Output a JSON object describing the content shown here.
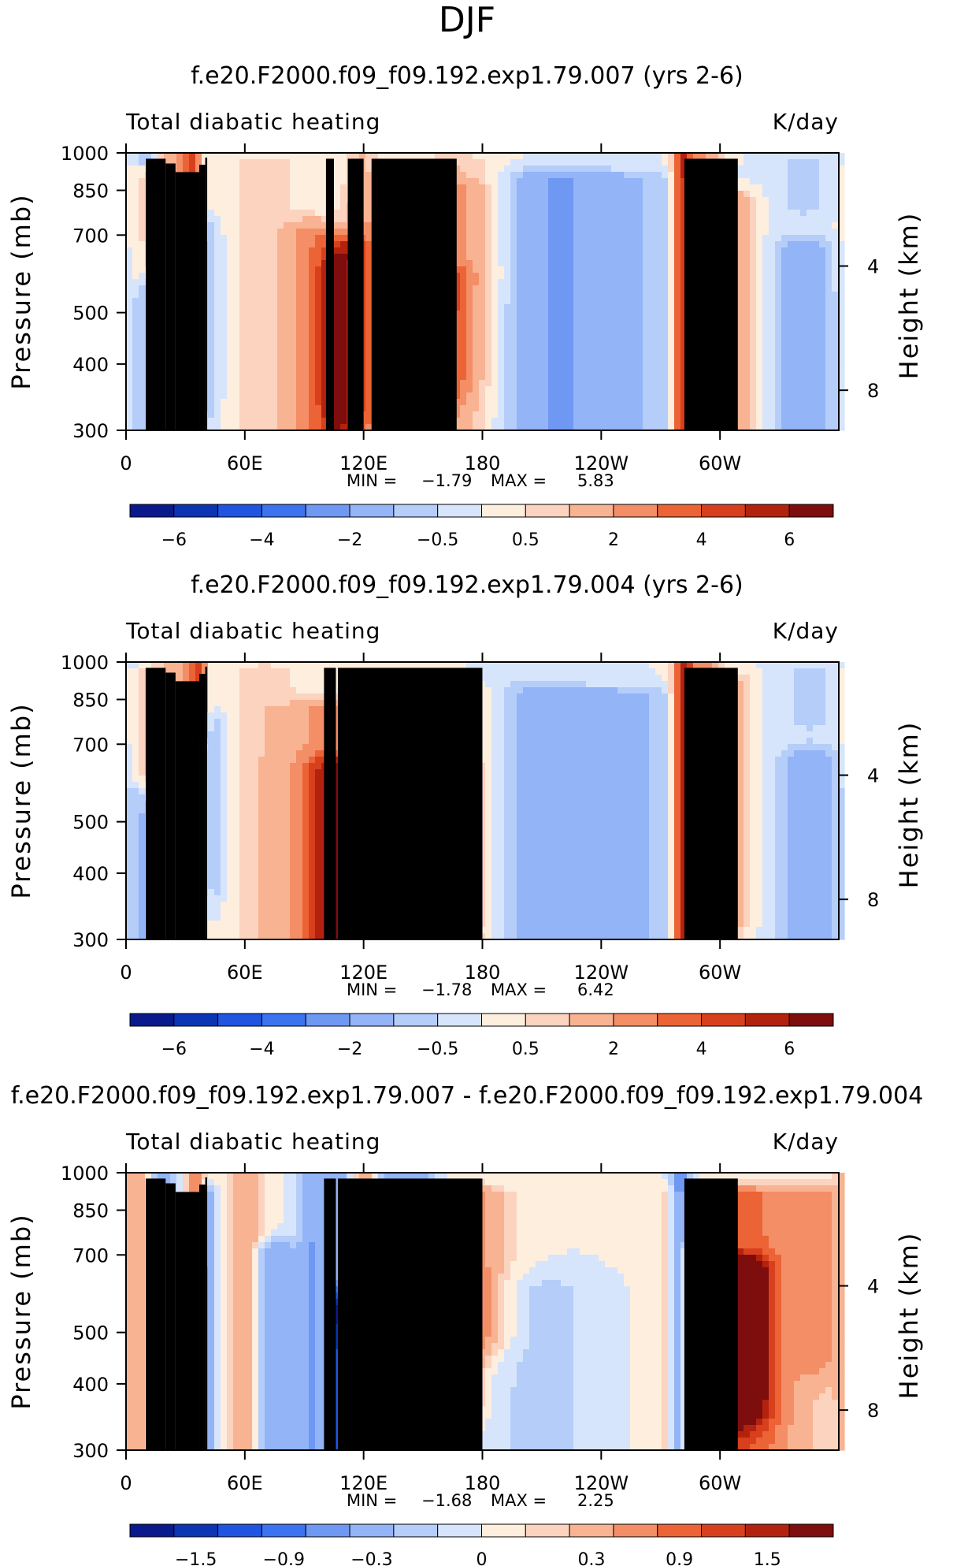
{
  "chart_data": {
    "type": "heatmap",
    "title": "DJF",
    "colorbar_colors": [
      "#0a1a8c",
      "#0b35b3",
      "#1f55e0",
      "#3b73f0",
      "#6f98f3",
      "#93b4f6",
      "#b5cdf9",
      "#d7e5fc",
      "#fdeede",
      "#fbd3bf",
      "#f8b393",
      "#f38e66",
      "#ec6336",
      "#d8401d",
      "#b3220f",
      "#7e0d0d"
    ],
    "panels": [
      {
        "title": "f.e20.F2000.f09_f09.192.exp1.79.007 (yrs 2-6)",
        "left_label": "Total diabatic heating",
        "right_label": "K/day",
        "ylabel": "Pressure (mb)",
        "y2label": "Height (km)",
        "x_ticks": [
          "0",
          "60E",
          "120E",
          "180",
          "120W",
          "60W"
        ],
        "y_ticks": [
          "300",
          "400",
          "500",
          "700",
          "850",
          "1000"
        ],
        "y2_ticks": [
          "8",
          "4"
        ],
        "ylim": [
          1000,
          300
        ],
        "min_label": "MIN =",
        "min_value": "−1.79",
        "max_label": "MAX =",
        "max_value": "5.83",
        "colorbar_labels": [
          "−6",
          "−4",
          "−2",
          "−0.5",
          "0.5",
          "2",
          "4",
          "6"
        ],
        "levels": [
          -7,
          -6,
          -5,
          -4,
          -3,
          -2,
          -1,
          -0.5,
          0,
          0.5,
          1,
          2,
          3,
          4,
          5,
          6,
          7
        ],
        "features": [
          {
            "lon": 10,
            "pmin": 300,
            "pmax": 1000,
            "width": 4,
            "value": -1.0
          },
          {
            "lon": 10,
            "pmin": 620,
            "pmax": 900,
            "width": 5,
            "value": 1.5
          },
          {
            "lon": 25,
            "pmin": 300,
            "pmax": 1000,
            "width": 6,
            "value": 1.8
          },
          {
            "lon": 33,
            "pmin": 700,
            "pmax": 1000,
            "width": 3,
            "value": 4.0
          },
          {
            "lon": 42,
            "pmin": 350,
            "pmax": 700,
            "width": 4,
            "value": -1.0
          },
          {
            "lon": 70,
            "pmin": 300,
            "pmax": 950,
            "width": 12,
            "value": 0.8
          },
          {
            "lon": 95,
            "pmin": 300,
            "pmax": 700,
            "width": 9,
            "value": 2.5
          },
          {
            "lon": 112,
            "pmin": 300,
            "pmax": 650,
            "width": 8,
            "value": 4.6
          },
          {
            "lon": 104,
            "pmin": 350,
            "pmax": 600,
            "width": 4,
            "value": 3.0
          },
          {
            "lon": 120,
            "pmin": 650,
            "pmax": 1000,
            "width": 6,
            "value": 1.0
          },
          {
            "lon": 150,
            "pmin": 380,
            "pmax": 560,
            "width": 14,
            "value": 5.5
          },
          {
            "lon": 150,
            "pmin": 300,
            "pmax": 850,
            "width": 22,
            "value": 2.0
          },
          {
            "lon": 165,
            "pmin": 600,
            "pmax": 950,
            "width": 15,
            "value": 1.0
          },
          {
            "lon": 232,
            "pmin": 300,
            "pmax": 880,
            "width": 28,
            "value": -1.8
          },
          {
            "lon": 210,
            "pmin": 300,
            "pmax": 900,
            "width": 12,
            "value": -0.6
          },
          {
            "lon": 281,
            "pmin": 300,
            "pmax": 1000,
            "width": 3,
            "value": 4.5
          },
          {
            "lon": 290,
            "pmin": 300,
            "pmax": 1000,
            "width": 6,
            "value": 2.5
          },
          {
            "lon": 307,
            "pmin": 300,
            "pmax": 800,
            "width": 7,
            "value": 2.0
          },
          {
            "lon": 342,
            "pmin": 300,
            "pmax": 650,
            "width": 10,
            "value": -1.8
          },
          {
            "lon": 342,
            "pmin": 800,
            "pmax": 950,
            "width": 10,
            "value": -0.7
          }
        ],
        "terrain": [
          {
            "lon0": 10,
            "lon1": 20,
            "p": 975
          },
          {
            "lon0": 20,
            "lon1": 25,
            "p": 955
          },
          {
            "lon0": 25,
            "lon1": 37,
            "p": 920
          },
          {
            "lon0": 37,
            "lon1": 40,
            "p": 950
          },
          {
            "lon0": 40,
            "lon1": 41,
            "p": 980
          },
          {
            "lon0": 101,
            "lon1": 105,
            "p": 975
          },
          {
            "lon0": 112,
            "lon1": 120,
            "p": 975
          },
          {
            "lon0": 124,
            "lon1": 167,
            "p": 975
          },
          {
            "lon0": 282,
            "lon1": 309,
            "p": 975
          }
        ]
      },
      {
        "title": "f.e20.F2000.f09_f09.192.exp1.79.004 (yrs 2-6)",
        "left_label": "Total diabatic heating",
        "right_label": "K/day",
        "ylabel": "Pressure (mb)",
        "y2label": "Height (km)",
        "x_ticks": [
          "0",
          "60E",
          "120E",
          "180",
          "120W",
          "60W"
        ],
        "y_ticks": [
          "300",
          "400",
          "500",
          "700",
          "850",
          "1000"
        ],
        "y2_ticks": [
          "8",
          "4"
        ],
        "ylim": [
          1000,
          300
        ],
        "min_label": "MIN =",
        "min_value": "−1.78",
        "max_label": "MAX =",
        "max_value": "6.42",
        "colorbar_labels": [
          "−6",
          "−4",
          "−2",
          "−0.5",
          "0.5",
          "2",
          "4",
          "6"
        ],
        "levels": [
          -7,
          -6,
          -5,
          -4,
          -3,
          -2,
          -1,
          -0.5,
          0,
          0.5,
          1,
          2,
          3,
          4,
          5,
          6,
          7
        ],
        "features": [
          {
            "lon": 8,
            "pmin": 300,
            "pmax": 1000,
            "width": 4,
            "value": -0.9
          },
          {
            "lon": 10,
            "pmin": 620,
            "pmax": 950,
            "width": 5,
            "value": 1.8
          },
          {
            "lon": 27,
            "pmin": 300,
            "pmax": 1000,
            "width": 6,
            "value": 1.8
          },
          {
            "lon": 36,
            "pmin": 750,
            "pmax": 1000,
            "width": 3,
            "value": 4.2
          },
          {
            "lon": 45,
            "pmin": 400,
            "pmax": 750,
            "width": 4,
            "value": -1.0
          },
          {
            "lon": 70,
            "pmin": 300,
            "pmax": 950,
            "width": 12,
            "value": 0.9
          },
          {
            "lon": 112,
            "pmin": 300,
            "pmax": 620,
            "width": 15,
            "value": 4.8
          },
          {
            "lon": 100,
            "pmin": 300,
            "pmax": 800,
            "width": 12,
            "value": 2.2
          },
          {
            "lon": 150,
            "pmin": 380,
            "pmax": 580,
            "width": 12,
            "value": 5.8
          },
          {
            "lon": 148,
            "pmin": 300,
            "pmax": 850,
            "width": 22,
            "value": 2.2
          },
          {
            "lon": 235,
            "pmin": 320,
            "pmax": 850,
            "width": 28,
            "value": -1.8
          },
          {
            "lon": 205,
            "pmin": 300,
            "pmax": 900,
            "width": 12,
            "value": -0.6
          },
          {
            "lon": 281,
            "pmin": 300,
            "pmax": 1000,
            "width": 3,
            "value": 5.0
          },
          {
            "lon": 290,
            "pmin": 300,
            "pmax": 1000,
            "width": 6,
            "value": 2.8
          },
          {
            "lon": 306,
            "pmin": 350,
            "pmax": 900,
            "width": 6,
            "value": 2.0
          },
          {
            "lon": 345,
            "pmin": 300,
            "pmax": 650,
            "width": 10,
            "value": -1.8
          },
          {
            "lon": 345,
            "pmin": 780,
            "pmax": 950,
            "width": 9,
            "value": -0.7
          }
        ],
        "terrain": [
          {
            "lon0": 10,
            "lon1": 20,
            "p": 975
          },
          {
            "lon0": 20,
            "lon1": 25,
            "p": 955
          },
          {
            "lon0": 25,
            "lon1": 37,
            "p": 920
          },
          {
            "lon0": 37,
            "lon1": 40,
            "p": 950
          },
          {
            "lon0": 40,
            "lon1": 41,
            "p": 980
          },
          {
            "lon0": 100,
            "lon1": 106,
            "p": 975
          },
          {
            "lon0": 107,
            "lon1": 180,
            "p": 975
          },
          {
            "lon0": 282,
            "lon1": 309,
            "p": 975
          }
        ]
      },
      {
        "title": "f.e20.F2000.f09_f09.192.exp1.79.007 - f.e20.F2000.f09_f09.192.exp1.79.004",
        "left_label": "Total diabatic heating",
        "right_label": "K/day",
        "ylabel": "Pressure (mb)",
        "y2label": "Height (km)",
        "x_ticks": [
          "0",
          "60E",
          "120E",
          "180",
          "120W",
          "60W"
        ],
        "y_ticks": [
          "300",
          "400",
          "500",
          "700",
          "850",
          "1000"
        ],
        "y2_ticks": [
          "8",
          "4"
        ],
        "ylim": [
          1000,
          300
        ],
        "min_label": "MIN =",
        "min_value": "−1.68",
        "max_label": "MAX =",
        "max_value": "2.25",
        "colorbar_labels": [
          "−1.5",
          "−0.9",
          "−0.3",
          "0",
          "0.3",
          "0.9",
          "1.5"
        ],
        "levels": [
          -2.1,
          -1.8,
          -1.5,
          -1.2,
          -0.9,
          -0.6,
          -0.3,
          -0.15,
          0,
          0.15,
          0.3,
          0.6,
          0.9,
          1.2,
          1.5,
          1.8,
          2.1
        ],
        "features": [
          {
            "lon": 5,
            "pmin": 300,
            "pmax": 1000,
            "width": 5,
            "value": 0.4
          },
          {
            "lon": 18,
            "pmin": 300,
            "pmax": 1000,
            "width": 4,
            "value": -0.5
          },
          {
            "lon": 35,
            "pmin": 700,
            "pmax": 1000,
            "width": 3,
            "value": 1.0
          },
          {
            "lon": 40,
            "pmin": 300,
            "pmax": 900,
            "width": 3,
            "value": -0.8
          },
          {
            "lon": 60,
            "pmin": 300,
            "pmax": 1000,
            "width": 6,
            "value": 0.6
          },
          {
            "lon": 75,
            "pmin": 300,
            "pmax": 700,
            "width": 8,
            "value": -0.6
          },
          {
            "lon": 95,
            "pmin": 300,
            "pmax": 1000,
            "width": 5,
            "value": -0.6
          },
          {
            "lon": 108,
            "pmin": 300,
            "pmax": 550,
            "width": 3,
            "value": -1.6
          },
          {
            "lon": 108,
            "pmin": 550,
            "pmax": 1000,
            "width": 4,
            "value": -0.5
          },
          {
            "lon": 120,
            "pmin": 300,
            "pmax": 1000,
            "width": 4,
            "value": 0.5
          },
          {
            "lon": 135,
            "pmin": 300,
            "pmax": 1000,
            "width": 5,
            "value": -0.5
          },
          {
            "lon": 158,
            "pmin": 380,
            "pmax": 620,
            "width": 12,
            "value": 1.4
          },
          {
            "lon": 168,
            "pmin": 500,
            "pmax": 900,
            "width": 15,
            "value": 0.9
          },
          {
            "lon": 150,
            "pmin": 620,
            "pmax": 1000,
            "width": 6,
            "value": -0.4
          },
          {
            "lon": 210,
            "pmin": 300,
            "pmax": 600,
            "width": 22,
            "value": -0.2
          },
          {
            "lon": 280,
            "pmin": 300,
            "pmax": 1000,
            "width": 3,
            "value": -1.0
          },
          {
            "lon": 285,
            "pmin": 300,
            "pmax": 700,
            "width": 3,
            "value": 0.8
          },
          {
            "lon": 310,
            "pmin": 380,
            "pmax": 650,
            "width": 10,
            "value": 2.2
          },
          {
            "lon": 312,
            "pmin": 300,
            "pmax": 900,
            "width": 22,
            "value": 1.0
          },
          {
            "lon": 350,
            "pmin": 450,
            "pmax": 900,
            "width": 8,
            "value": 0.5
          }
        ],
        "terrain": [
          {
            "lon0": 10,
            "lon1": 20,
            "p": 975
          },
          {
            "lon0": 20,
            "lon1": 25,
            "p": 955
          },
          {
            "lon0": 25,
            "lon1": 37,
            "p": 920
          },
          {
            "lon0": 37,
            "lon1": 40,
            "p": 950
          },
          {
            "lon0": 40,
            "lon1": 41,
            "p": 980
          },
          {
            "lon0": 100,
            "lon1": 106,
            "p": 975
          },
          {
            "lon0": 107,
            "lon1": 180,
            "p": 975
          },
          {
            "lon0": 282,
            "lon1": 309,
            "p": 975
          }
        ]
      }
    ]
  }
}
